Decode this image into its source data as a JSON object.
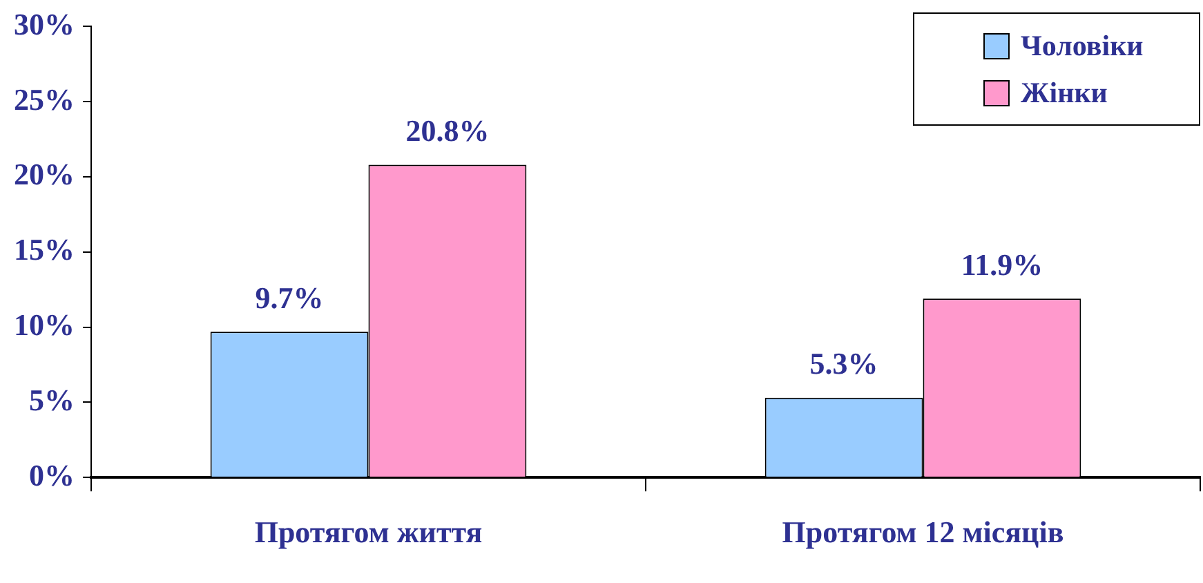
{
  "chart_data": {
    "type": "bar",
    "categories": [
      "Протягом життя",
      "Протягом 12 місяців"
    ],
    "series": [
      {
        "name": "Чоловіки",
        "color": "#99ccff",
        "values": [
          9.7,
          5.3
        ],
        "value_labels": [
          "9.7%",
          "5.3%"
        ]
      },
      {
        "name": "Жінки",
        "color": "#ff99cc",
        "values": [
          20.8,
          11.9
        ],
        "value_labels": [
          "20.8%",
          "11.9%"
        ]
      }
    ],
    "ylim": [
      0,
      30
    ],
    "yticks": [
      {
        "value": 0,
        "label": "0%"
      },
      {
        "value": 5,
        "label": "5%"
      },
      {
        "value": 10,
        "label": "10%"
      },
      {
        "value": 15,
        "label": "15%"
      },
      {
        "value": 20,
        "label": "20%"
      },
      {
        "value": 25,
        "label": "25%"
      },
      {
        "value": 30,
        "label": "30%"
      }
    ],
    "grid": false,
    "legend": "top right"
  }
}
